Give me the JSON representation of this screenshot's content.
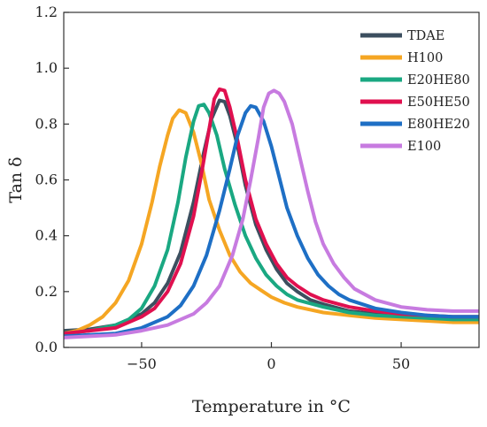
{
  "chart_data": {
    "type": "line",
    "xlabel": "Temperature in °C",
    "ylabel": "Tan δ",
    "xlim": [
      -80,
      80
    ],
    "ylim": [
      0.0,
      1.2
    ],
    "xticks": [
      -50,
      0,
      50
    ],
    "yticks": [
      0.0,
      0.2,
      0.4,
      0.6,
      0.8,
      1.0,
      1.2
    ],
    "ytick_labels": [
      "0.0",
      "0.2",
      "0.4",
      "0.6",
      "0.8",
      "1.0",
      "1.2"
    ],
    "grid": false,
    "legend_position": "top-right",
    "series": [
      {
        "name": "TDAE",
        "color": "#3c4f5f",
        "points": [
          [
            -80,
            0.06
          ],
          [
            -70,
            0.065
          ],
          [
            -60,
            0.08
          ],
          [
            -50,
            0.12
          ],
          [
            -45,
            0.16
          ],
          [
            -40,
            0.23
          ],
          [
            -35,
            0.34
          ],
          [
            -30,
            0.52
          ],
          [
            -26,
            0.7
          ],
          [
            -23,
            0.82
          ],
          [
            -20,
            0.885
          ],
          [
            -18,
            0.88
          ],
          [
            -16,
            0.83
          ],
          [
            -13,
            0.72
          ],
          [
            -10,
            0.58
          ],
          [
            -6,
            0.44
          ],
          [
            -2,
            0.35
          ],
          [
            2,
            0.28
          ],
          [
            6,
            0.23
          ],
          [
            10,
            0.2
          ],
          [
            15,
            0.17
          ],
          [
            20,
            0.155
          ],
          [
            30,
            0.13
          ],
          [
            40,
            0.12
          ],
          [
            50,
            0.11
          ],
          [
            60,
            0.105
          ],
          [
            70,
            0.1
          ],
          [
            80,
            0.1
          ]
        ]
      },
      {
        "name": "H100",
        "color": "#f5a623",
        "points": [
          [
            -80,
            0.05
          ],
          [
            -75,
            0.06
          ],
          [
            -70,
            0.08
          ],
          [
            -65,
            0.11
          ],
          [
            -60,
            0.16
          ],
          [
            -55,
            0.24
          ],
          [
            -50,
            0.37
          ],
          [
            -46,
            0.52
          ],
          [
            -43,
            0.65
          ],
          [
            -40,
            0.76
          ],
          [
            -38,
            0.82
          ],
          [
            -35.5,
            0.85
          ],
          [
            -33,
            0.84
          ],
          [
            -30,
            0.77
          ],
          [
            -27,
            0.66
          ],
          [
            -24,
            0.53
          ],
          [
            -20,
            0.42
          ],
          [
            -16,
            0.33
          ],
          [
            -12,
            0.27
          ],
          [
            -8,
            0.23
          ],
          [
            -4,
            0.205
          ],
          [
            0,
            0.18
          ],
          [
            5,
            0.16
          ],
          [
            10,
            0.145
          ],
          [
            20,
            0.125
          ],
          [
            30,
            0.115
          ],
          [
            40,
            0.105
          ],
          [
            50,
            0.1
          ],
          [
            60,
            0.095
          ],
          [
            70,
            0.09
          ],
          [
            80,
            0.09
          ]
        ]
      },
      {
        "name": "E20HE80",
        "color": "#1aa882",
        "points": [
          [
            -80,
            0.05
          ],
          [
            -70,
            0.06
          ],
          [
            -60,
            0.08
          ],
          [
            -55,
            0.1
          ],
          [
            -50,
            0.14
          ],
          [
            -45,
            0.22
          ],
          [
            -40,
            0.35
          ],
          [
            -36,
            0.52
          ],
          [
            -33,
            0.68
          ],
          [
            -30,
            0.81
          ],
          [
            -28,
            0.865
          ],
          [
            -26,
            0.87
          ],
          [
            -24,
            0.84
          ],
          [
            -21,
            0.76
          ],
          [
            -18,
            0.64
          ],
          [
            -14,
            0.51
          ],
          [
            -10,
            0.4
          ],
          [
            -6,
            0.32
          ],
          [
            -2,
            0.26
          ],
          [
            2,
            0.22
          ],
          [
            6,
            0.19
          ],
          [
            10,
            0.17
          ],
          [
            20,
            0.145
          ],
          [
            30,
            0.125
          ],
          [
            40,
            0.115
          ],
          [
            50,
            0.11
          ],
          [
            60,
            0.105
          ],
          [
            70,
            0.1
          ],
          [
            80,
            0.1
          ]
        ]
      },
      {
        "name": "E50HE50",
        "color": "#e0104f",
        "points": [
          [
            -80,
            0.05
          ],
          [
            -70,
            0.06
          ],
          [
            -60,
            0.07
          ],
          [
            -50,
            0.11
          ],
          [
            -45,
            0.14
          ],
          [
            -40,
            0.2
          ],
          [
            -35,
            0.3
          ],
          [
            -30,
            0.47
          ],
          [
            -27,
            0.62
          ],
          [
            -24,
            0.78
          ],
          [
            -22,
            0.89
          ],
          [
            -20,
            0.925
          ],
          [
            -18,
            0.92
          ],
          [
            -16,
            0.86
          ],
          [
            -13,
            0.74
          ],
          [
            -10,
            0.6
          ],
          [
            -6,
            0.46
          ],
          [
            -2,
            0.37
          ],
          [
            2,
            0.3
          ],
          [
            6,
            0.25
          ],
          [
            10,
            0.22
          ],
          [
            15,
            0.19
          ],
          [
            20,
            0.17
          ],
          [
            30,
            0.145
          ],
          [
            40,
            0.13
          ],
          [
            50,
            0.12
          ],
          [
            60,
            0.115
          ],
          [
            70,
            0.11
          ],
          [
            80,
            0.11
          ]
        ]
      },
      {
        "name": "E80HE20",
        "color": "#1e6fc5",
        "points": [
          [
            -80,
            0.04
          ],
          [
            -70,
            0.045
          ],
          [
            -60,
            0.05
          ],
          [
            -50,
            0.07
          ],
          [
            -40,
            0.11
          ],
          [
            -35,
            0.15
          ],
          [
            -30,
            0.22
          ],
          [
            -25,
            0.33
          ],
          [
            -20,
            0.49
          ],
          [
            -16,
            0.64
          ],
          [
            -13,
            0.76
          ],
          [
            -10,
            0.84
          ],
          [
            -8,
            0.865
          ],
          [
            -6,
            0.86
          ],
          [
            -3,
            0.81
          ],
          [
            0,
            0.72
          ],
          [
            3,
            0.61
          ],
          [
            6,
            0.5
          ],
          [
            10,
            0.4
          ],
          [
            14,
            0.32
          ],
          [
            18,
            0.26
          ],
          [
            22,
            0.22
          ],
          [
            26,
            0.19
          ],
          [
            30,
            0.17
          ],
          [
            40,
            0.14
          ],
          [
            50,
            0.125
          ],
          [
            60,
            0.115
          ],
          [
            70,
            0.11
          ],
          [
            80,
            0.11
          ]
        ]
      },
      {
        "name": "E100",
        "color": "#c77be0",
        "points": [
          [
            -80,
            0.035
          ],
          [
            -70,
            0.04
          ],
          [
            -60,
            0.045
          ],
          [
            -50,
            0.06
          ],
          [
            -40,
            0.08
          ],
          [
            -30,
            0.12
          ],
          [
            -25,
            0.16
          ],
          [
            -20,
            0.22
          ],
          [
            -15,
            0.33
          ],
          [
            -11,
            0.46
          ],
          [
            -8,
            0.6
          ],
          [
            -5,
            0.75
          ],
          [
            -3,
            0.86
          ],
          [
            -1,
            0.91
          ],
          [
            1,
            0.92
          ],
          [
            3,
            0.91
          ],
          [
            5,
            0.88
          ],
          [
            8,
            0.8
          ],
          [
            11,
            0.68
          ],
          [
            14,
            0.56
          ],
          [
            17,
            0.45
          ],
          [
            20,
            0.37
          ],
          [
            24,
            0.3
          ],
          [
            28,
            0.25
          ],
          [
            32,
            0.21
          ],
          [
            40,
            0.17
          ],
          [
            50,
            0.145
          ],
          [
            60,
            0.135
          ],
          [
            70,
            0.13
          ],
          [
            80,
            0.13
          ]
        ]
      }
    ]
  }
}
